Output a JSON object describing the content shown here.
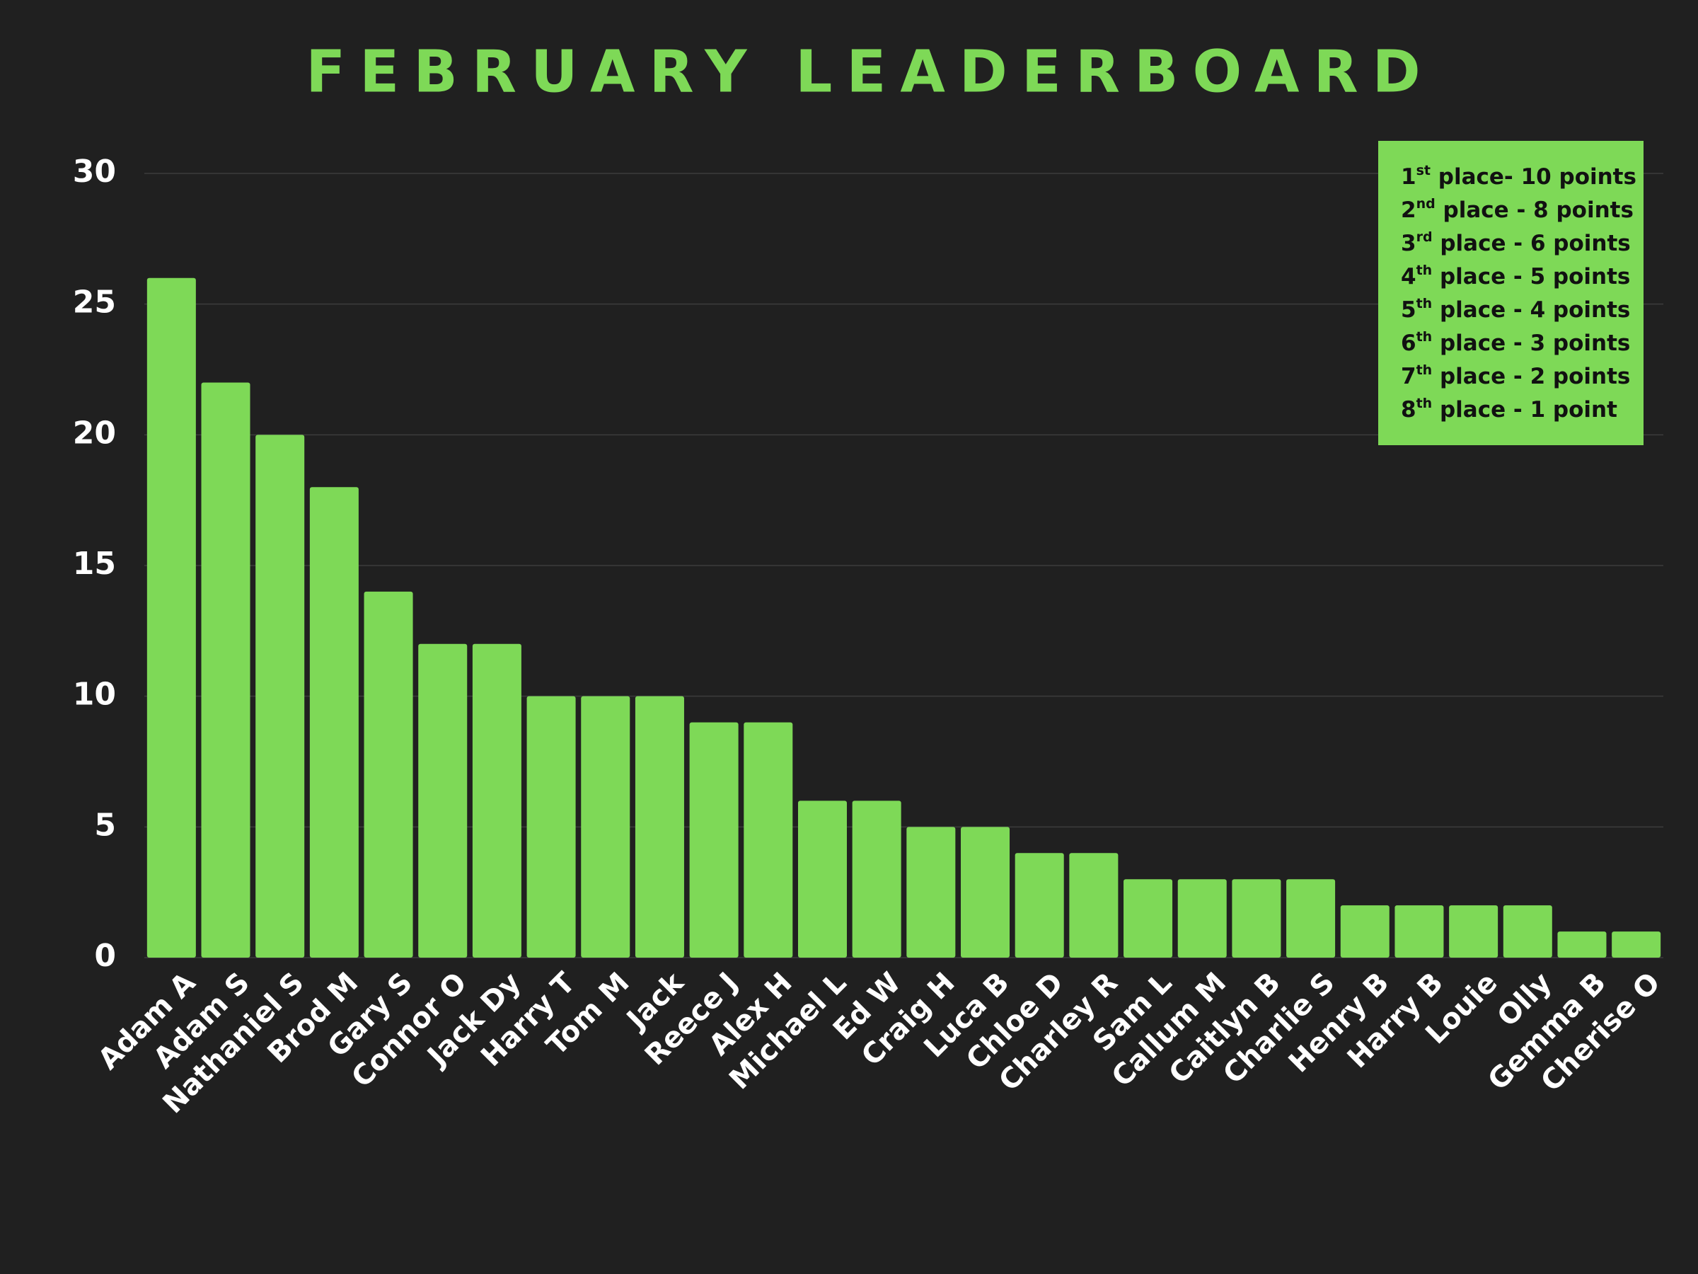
{
  "chart_data": {
    "type": "bar",
    "title": "FEBRUARY LEADERBOARD",
    "categories": [
      "Adam A",
      "Adam S",
      "Nathaniel S",
      "Brod M",
      "Gary S",
      "Connor O",
      "Jack Dy",
      "Harry T",
      "Tom M",
      "Jack",
      "Reece J",
      "Alex H",
      "Michael L",
      "Ed W",
      "Craig H",
      "Luca B",
      "Chloe D",
      "Charley R",
      "Sam L",
      "Callum M",
      "Caitlyn B",
      "Charlie S",
      "Henry B",
      "Harry B",
      "Louie",
      "Olly",
      "Gemma B",
      "Cherise O"
    ],
    "values": [
      26,
      22,
      20,
      18,
      14,
      12,
      12,
      10,
      10,
      10,
      9,
      9,
      6,
      6,
      5,
      5,
      4,
      4,
      3,
      3,
      3,
      3,
      2,
      2,
      2,
      2,
      1,
      1
    ],
    "color": "#7ed957",
    "ylim": [
      0,
      30
    ],
    "yticks": [
      0,
      5,
      10,
      15,
      20,
      25,
      30
    ],
    "grid": true,
    "legend_position": "top-right",
    "annotations": [
      {
        "number": "1",
        "sup": "st",
        "rest": " place- 10 points"
      },
      {
        "number": "2",
        "sup": "nd",
        "rest": " place - 8 points"
      },
      {
        "number": "3",
        "sup": "rd",
        "rest": " place - 6 points"
      },
      {
        "number": "4",
        "sup": "th",
        "rest": " place - 5 points"
      },
      {
        "number": "5",
        "sup": "th",
        "rest": " place - 4 points"
      },
      {
        "number": "6",
        "sup": "th",
        "rest": " place - 3 points"
      },
      {
        "number": "7",
        "sup": "th",
        "rest": " place - 2 points"
      },
      {
        "number": "8",
        "sup": "th",
        "rest": " place - 1 point"
      }
    ]
  }
}
